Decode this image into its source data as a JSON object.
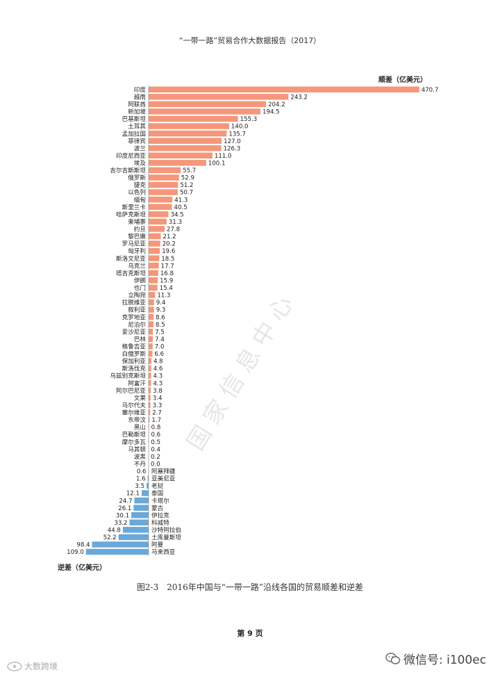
{
  "header": {
    "title": "“一带一路”贸易合作大数据报告（2017）"
  },
  "watermark": "国家信息中心",
  "caption": "图2-3　2016年中国与“一带一路”沿线各国的贸易顺差和逆差",
  "page_number": "第 9 页",
  "footer": {
    "wechat_label": "微信号: i100ec",
    "logo_text": "大数跨境"
  },
  "colors": {
    "surplus": "#f4977a",
    "deficit": "#6aa8d8"
  },
  "chart_data": {
    "type": "bar",
    "orientation": "horizontal-diverging",
    "surplus_label": "顺差（亿美元）",
    "deficit_label": "逆差（亿美元）",
    "series": [
      {
        "name": "顺差（亿美元）",
        "role": "surplus",
        "categories": [
          "印度",
          "越南",
          "阿联酋",
          "新加坡",
          "巴基斯坦",
          "土耳其",
          "孟加拉国",
          "菲律宾",
          "波兰",
          "印度尼西亚",
          "埃及",
          "吉尔吉斯斯坦",
          "俄罗斯",
          "捷克",
          "以色列",
          "缅甸",
          "斯里兰卡",
          "哈萨克斯坦",
          "柬埔寨",
          "约旦",
          "黎巴嫩",
          "罗马尼亚",
          "匈牙利",
          "斯洛文尼亚",
          "乌克兰",
          "塔吉克斯坦",
          "伊朗",
          "也门",
          "立陶宛",
          "拉脱维亚",
          "叙利亚",
          "克罗地亚",
          "尼泊尔",
          "爱沙尼亚",
          "巴林",
          "格鲁吉亚",
          "白俄罗斯",
          "保加利亚",
          "斯洛伐克",
          "乌兹别克斯坦",
          "阿富汗",
          "阿尔巴尼亚",
          "文莱",
          "马尔代夫",
          "塞尔维亚",
          "东帝汶",
          "黑山",
          "巴勒斯坦",
          "摩尔多瓦",
          "马其顿",
          "波黑",
          "不丹"
        ],
        "values": [
          470.7,
          243.2,
          204.2,
          194.5,
          155.3,
          140.0,
          135.7,
          127.0,
          126.3,
          111.0,
          100.1,
          55.7,
          52.9,
          51.2,
          50.7,
          41.3,
          40.5,
          34.5,
          31.3,
          27.8,
          21.2,
          20.2,
          19.6,
          18.5,
          17.7,
          16.8,
          15.9,
          15.4,
          11.3,
          9.4,
          9.3,
          8.6,
          8.5,
          7.5,
          7.4,
          7.0,
          6.6,
          4.8,
          4.6,
          4.3,
          4.3,
          3.8,
          3.4,
          3.3,
          2.7,
          1.7,
          0.8,
          0.6,
          0.5,
          0.4,
          0.2,
          0.0
        ]
      },
      {
        "name": "逆差（亿美元）",
        "role": "deficit",
        "categories": [
          "阿塞拜疆",
          "亚美尼亚",
          "老挝",
          "泰国",
          "卡塔尔",
          "蒙古",
          "伊拉克",
          "科威特",
          "沙特阿拉伯",
          "土库曼斯坦",
          "阿曼",
          "马来西亚"
        ],
        "values": [
          0.6,
          1.6,
          3.5,
          12.1,
          24.7,
          26.1,
          30.1,
          33.2,
          44.8,
          52.2,
          98.4,
          109.0
        ]
      }
    ]
  }
}
